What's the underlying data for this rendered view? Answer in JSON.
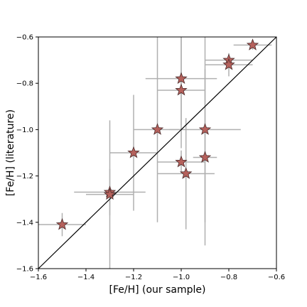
{
  "chart_data": {
    "type": "scatter",
    "title": "",
    "xlabel": "[Fe/H] (our sample)",
    "ylabel": "[Fe/H] (literature)",
    "xlim": [
      -1.6,
      -0.6
    ],
    "ylim": [
      -1.6,
      -0.6
    ],
    "xticks": [
      -1.6,
      -1.4,
      -1.2,
      -1.0,
      -0.8,
      -0.6
    ],
    "yticks": [
      -1.6,
      -1.4,
      -1.2,
      -1.0,
      -0.8,
      -0.6
    ],
    "xtick_labels": [
      "−1.6",
      "−1.4",
      "−1.2",
      "−1.0",
      "−0.8",
      "−0.6"
    ],
    "ytick_labels": [
      "−1.6",
      "−1.4",
      "−1.2",
      "−1.0",
      "−0.8",
      "−0.6"
    ],
    "grid": false,
    "legend": "none",
    "reference_line": {
      "type": "one-to-one",
      "from": [
        -1.6,
        -1.6
      ],
      "to": [
        -0.6,
        -0.6
      ],
      "color": "#000000"
    },
    "marker": {
      "shape": "star",
      "fill": "#b5615c",
      "edge": "#4a2a2a"
    },
    "errorbar_color": "#b0b0b0",
    "points": [
      {
        "x": -1.5,
        "y": -1.41,
        "xerr": 0.1,
        "yerr": 0.05
      },
      {
        "x": -1.3,
        "y": -1.27,
        "xerr": 0.15,
        "yerr": 0.1
      },
      {
        "x": -1.3,
        "y": -1.28,
        "xerr": 0.1,
        "yerr": 0.32
      },
      {
        "x": -1.2,
        "y": -1.1,
        "xerr": 0.1,
        "yerr": 0.25
      },
      {
        "x": -1.1,
        "y": -1.0,
        "xerr": 0.1,
        "yerr": 0.4
      },
      {
        "x": -1.0,
        "y": -0.78,
        "xerr": 0.15,
        "yerr": 0.2
      },
      {
        "x": -1.0,
        "y": -0.83,
        "xerr": 0.1,
        "yerr": 0.25
      },
      {
        "x": -1.0,
        "y": -1.14,
        "xerr": 0.1,
        "yerr": 0.05
      },
      {
        "x": -0.98,
        "y": -1.19,
        "xerr": 0.12,
        "yerr": 0.24
      },
      {
        "x": -0.9,
        "y": -1.0,
        "xerr": 0.15,
        "yerr": 0.4
      },
      {
        "x": -0.9,
        "y": -1.12,
        "xerr": 0.05,
        "yerr": 0.38
      },
      {
        "x": -0.8,
        "y": -0.7,
        "xerr": 0.1,
        "yerr": 0.02
      },
      {
        "x": -0.8,
        "y": -0.72,
        "xerr": 0.1,
        "yerr": 0.05
      },
      {
        "x": -0.7,
        "y": -0.635,
        "xerr": 0.08,
        "yerr": 0.02
      }
    ]
  }
}
